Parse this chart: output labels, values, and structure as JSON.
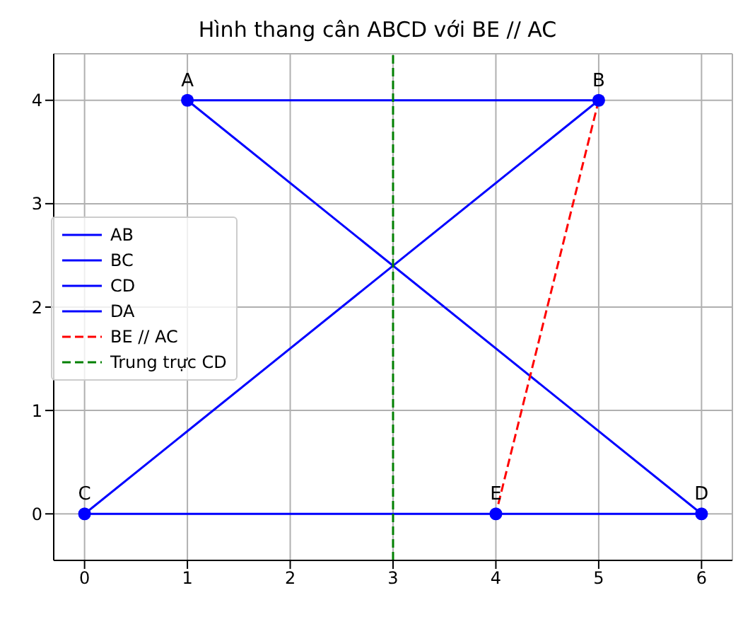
{
  "chart_data": {
    "type": "line",
    "title": "Hình thang cân ABCD với BE // AC",
    "xlim": [
      -0.3,
      6.3
    ],
    "ylim": [
      -0.45,
      4.45
    ],
    "xticks": [
      0,
      1,
      2,
      3,
      4,
      5,
      6
    ],
    "yticks": [
      0,
      1,
      2,
      3,
      4
    ],
    "grid": true,
    "legend": "left",
    "series": [
      {
        "name": "AB",
        "color": "#0000ff",
        "x": [
          1,
          5
        ],
        "values": [
          4,
          4
        ],
        "line_style": "solid"
      },
      {
        "name": "BC",
        "color": "#0000ff",
        "x": [
          5,
          0
        ],
        "values": [
          4,
          0
        ],
        "line_style": "solid"
      },
      {
        "name": "CD",
        "color": "#0000ff",
        "x": [
          0,
          6
        ],
        "values": [
          0,
          0
        ],
        "line_style": "solid"
      },
      {
        "name": "DA",
        "color": "#0000ff",
        "x": [
          6,
          1
        ],
        "values": [
          0,
          4
        ],
        "line_style": "solid"
      },
      {
        "name": "BE // AC",
        "color": "#ff0000",
        "x": [
          5,
          4
        ],
        "values": [
          4,
          0
        ],
        "line_style": "dashed"
      },
      {
        "name": "Trung trực CD",
        "color": "#008000",
        "x": [
          3,
          3
        ],
        "values": [
          -0.45,
          4.45
        ],
        "line_style": "dashed"
      },
      {
        "type": "scatter",
        "color": "#0000ff",
        "x": [
          1,
          5,
          0,
          6,
          4
        ],
        "values": [
          4,
          4,
          0,
          0,
          0
        ],
        "marker": "circle"
      }
    ],
    "annotations": [
      {
        "text": "A",
        "x": 1,
        "y": 4
      },
      {
        "text": "B",
        "x": 5,
        "y": 4
      },
      {
        "text": "C",
        "x": 0,
        "y": 0
      },
      {
        "text": "D",
        "x": 6,
        "y": 0
      },
      {
        "text": "E",
        "x": 4,
        "y": 0
      }
    ]
  }
}
